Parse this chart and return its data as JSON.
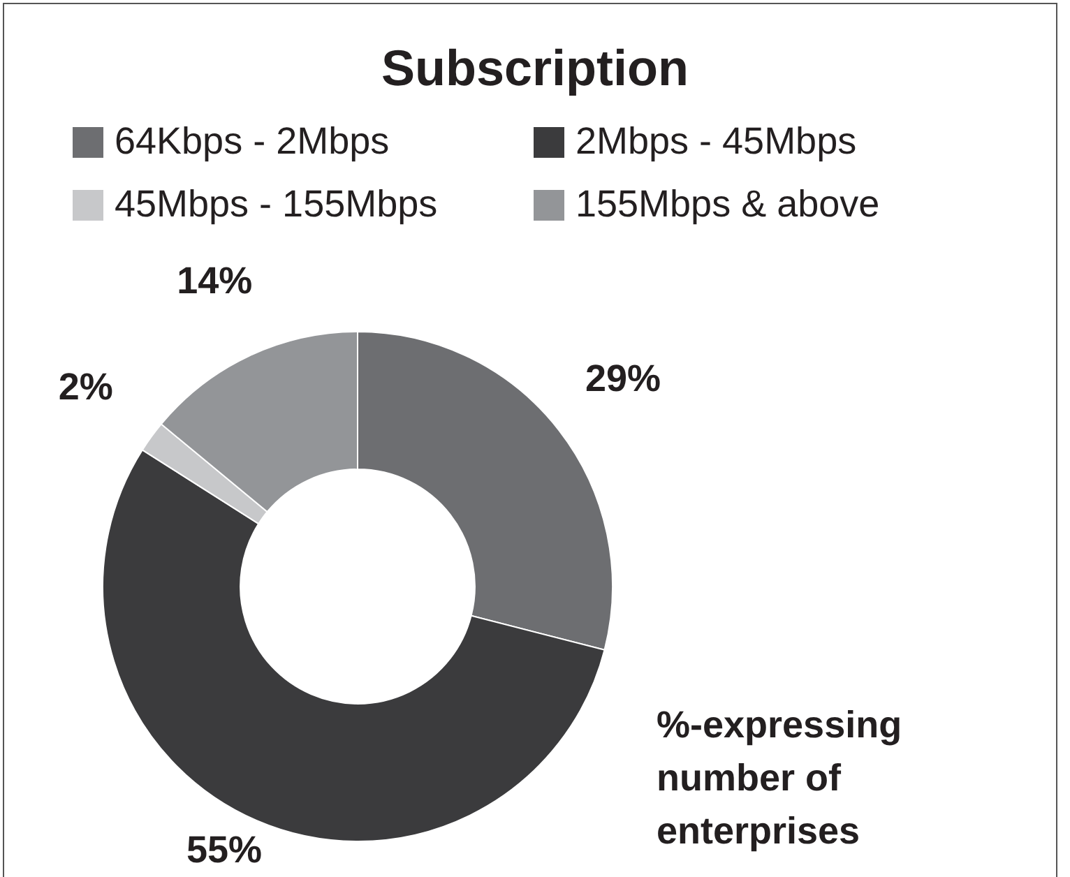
{
  "chart_data": {
    "type": "donut",
    "title": "Subscription",
    "categories": [
      "64Kbps - 2Mbps",
      "2Mbps - 45Mbps",
      "45Mbps - 155Mbps",
      "155Mbps & above"
    ],
    "values": [
      29,
      55,
      2,
      14
    ],
    "colors": [
      "#6d6e71",
      "#3b3b3d",
      "#c7c8ca",
      "#939598"
    ],
    "value_labels": [
      "29%",
      "55%",
      "2%",
      "14%"
    ],
    "legend": "top",
    "annotations": [
      "%-expressing number of enterprises"
    ]
  }
}
